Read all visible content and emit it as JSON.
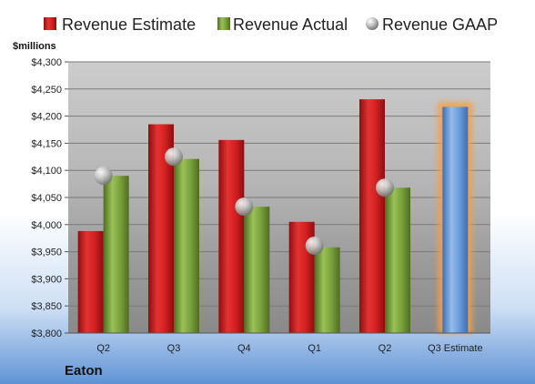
{
  "chart_data": {
    "type": "bar",
    "company": "Eaton",
    "unit_label": "$millions",
    "categories": [
      "Q2",
      "Q3",
      "Q4",
      "Q1",
      "Q2",
      "Q3 Estimate"
    ],
    "series": [
      {
        "name": "Revenue Estimate",
        "type": "bar",
        "color": "#d42020",
        "values": [
          3988,
          4185,
          4156,
          4005,
          4231,
          null
        ]
      },
      {
        "name": "Revenue Actual",
        "type": "bar",
        "color": "#7aa23c",
        "values": [
          4090,
          4121,
          4033,
          3958,
          4068,
          null
        ]
      },
      {
        "name": "Revenue GAAP",
        "type": "marker",
        "color": "#b8b8b8",
        "values": [
          4090,
          4125,
          4033,
          3961,
          4068,
          null
        ]
      }
    ],
    "highlight": {
      "category_index": 5,
      "value": 4217,
      "color": "#6c9ddb",
      "glow_color": "#f5a040"
    },
    "ylim": [
      3800,
      4300
    ],
    "yticks": [
      "$3,800",
      "$3,850",
      "$3,900",
      "$3,950",
      "$4,000",
      "$4,050",
      "$4,100",
      "$4,150",
      "$4,200",
      "$4,250",
      "$4,300"
    ],
    "ytick_values": [
      3800,
      3850,
      3900,
      3950,
      4000,
      4050,
      4100,
      4150,
      4200,
      4250,
      4300
    ],
    "grid": true,
    "legend_position": "top"
  }
}
